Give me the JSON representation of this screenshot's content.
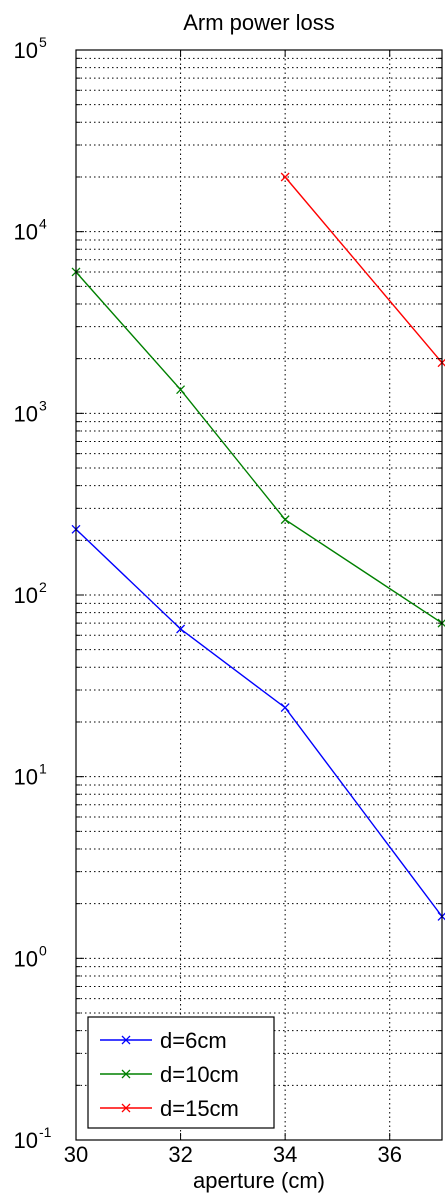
{
  "chart_data": {
    "type": "line",
    "title": "Arm power loss",
    "xlabel": "aperture (cm)",
    "ylabel": "",
    "x": [
      30,
      32,
      34,
      36,
      37
    ],
    "xlim": [
      30,
      37
    ],
    "ylim": [
      0.1,
      100000
    ],
    "yscale": "log",
    "grid": true,
    "x_ticks": [
      "30",
      "32",
      "34",
      "36"
    ],
    "y_ticks": [
      {
        "base": "10",
        "exp": "-1"
      },
      {
        "base": "10",
        "exp": "0"
      },
      {
        "base": "10",
        "exp": "1"
      },
      {
        "base": "10",
        "exp": "2"
      },
      {
        "base": "10",
        "exp": "3"
      },
      {
        "base": "10",
        "exp": "4"
      },
      {
        "base": "10",
        "exp": "5"
      }
    ],
    "legend_position": "bottom-left",
    "series": [
      {
        "name": "d=6cm",
        "color": "#0000ff",
        "marker": "x",
        "points": [
          [
            30,
            230
          ],
          [
            32,
            65
          ],
          [
            34,
            24
          ],
          [
            37,
            1.7
          ]
        ]
      },
      {
        "name": "d=10cm",
        "color": "#008000",
        "marker": "x",
        "points": [
          [
            30,
            6000
          ],
          [
            32,
            1350
          ],
          [
            34,
            260
          ],
          [
            37,
            70
          ]
        ]
      },
      {
        "name": "d=15cm",
        "color": "#ff0000",
        "marker": "x",
        "points": [
          [
            34,
            20000
          ],
          [
            37,
            1900
          ]
        ]
      }
    ]
  }
}
